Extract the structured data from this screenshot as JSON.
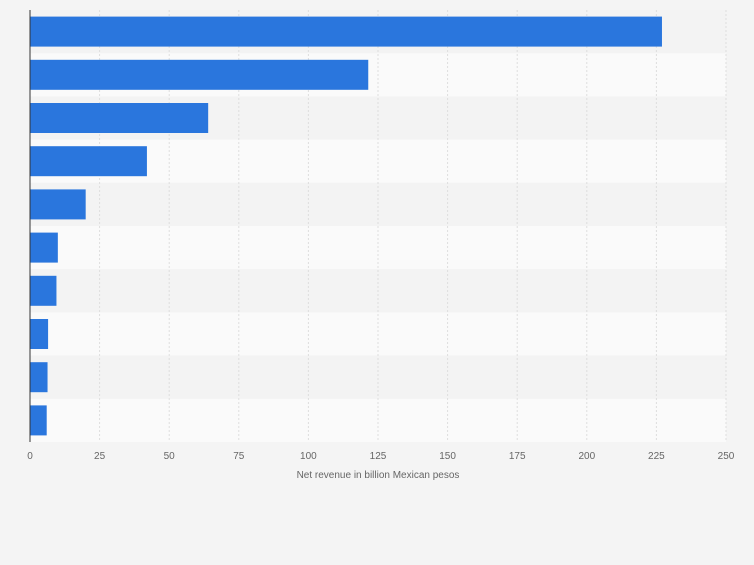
{
  "chart_data": {
    "type": "bar",
    "orientation": "horizontal",
    "categories": [
      "",
      "",
      "",
      "",
      "",
      "",
      "",
      "",
      "",
      ""
    ],
    "values": [
      227,
      121.5,
      64,
      42,
      20,
      10,
      9.5,
      6.5,
      6.3,
      6
    ],
    "title": "",
    "xlabel": "Net revenue in billion Mexican pesos",
    "ylabel": "",
    "xlim": [
      0,
      250
    ],
    "xticks": [
      0,
      25,
      50,
      75,
      100,
      125,
      150,
      175,
      200,
      225,
      250
    ],
    "grid": true,
    "legend": "none",
    "colors": {
      "bar": "#2a76dd",
      "band_light": "#fafafa",
      "band_dark": "#f3f3f3",
      "grid": "#dedede",
      "axis": "#333333",
      "tick_text": "#666666"
    }
  }
}
